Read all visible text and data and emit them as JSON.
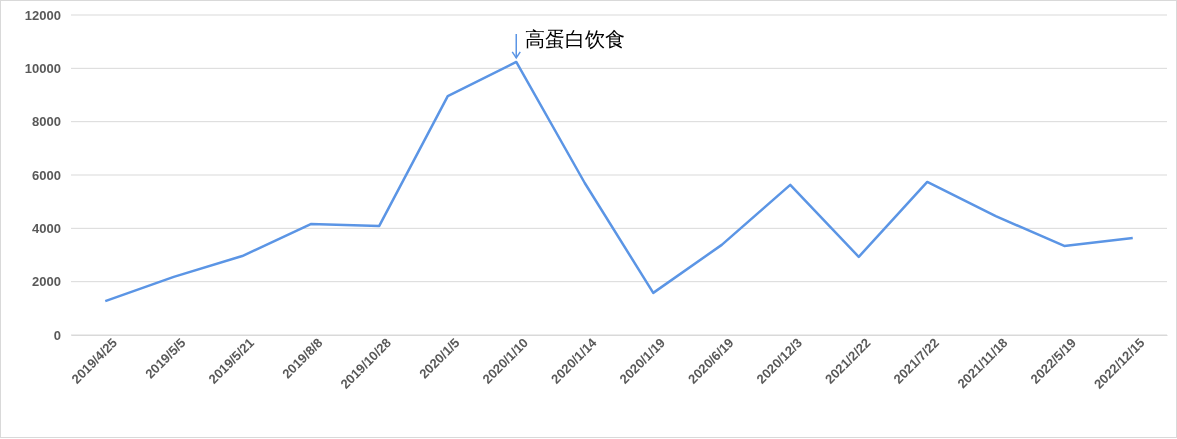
{
  "chart_data": {
    "type": "line",
    "categories": [
      "2019/4/25",
      "2019/5/5",
      "2019/5/21",
      "2019/8/8",
      "2019/10/28",
      "2020/1/5",
      "2020/1/10",
      "2020/1/14",
      "2020/1/19",
      "2020/6/19",
      "2020/12/3",
      "2021/2/22",
      "2021/7/22",
      "2021/11/18",
      "2022/5/19",
      "2022/12/15"
    ],
    "series": [
      {
        "color": "#5b95e5",
        "values": [
          1270,
          2180,
          2960,
          4160,
          4090,
          8960,
          10240,
          5700,
          1580,
          3380,
          5630,
          2930,
          5740,
          4460,
          3340,
          3640
        ]
      }
    ],
    "ylim": [
      0,
      12000
    ],
    "yticks": [
      0,
      2000,
      4000,
      6000,
      8000,
      10000,
      12000
    ],
    "grid": "y",
    "marker": "none",
    "line_style": "solid",
    "annotations": [
      {
        "text": "高蛋白饮食",
        "x": "2020/1/10",
        "y": 10240
      }
    ]
  }
}
